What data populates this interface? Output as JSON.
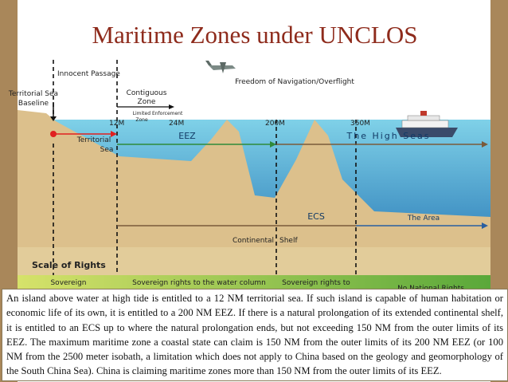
{
  "title": "Maritime Zones under UNCLOS",
  "diagram": {
    "innocent_passage": "Innocent Passage",
    "baseline": [
      "Territorial Sea",
      "Baseline"
    ],
    "contiguous": [
      "Contiguous",
      "Zone"
    ],
    "limited": [
      "Limited Enforcement",
      "Zone"
    ],
    "distances": [
      "12M",
      "24M",
      "200M",
      "350M"
    ],
    "freedom": "Freedom of Navigation/Overflight",
    "territorial": [
      "Territorial",
      "Sea"
    ],
    "eez": "EEZ",
    "high_seas": "The High Seas",
    "ecs": "ECS",
    "area": "The Area",
    "shelf": [
      "Continental",
      "Shelf"
    ]
  },
  "scale": {
    "title": "Scale of Rights",
    "items": [
      "Sovereign",
      "Sovereign rights to the water column",
      "Sovereign rights to",
      "No National Rights"
    ]
  },
  "note": "An island above water at high tide is entitled to a 12 NM territorial sea.  If such island is capable of human habitation or economic life of its own,  it is entitled to a 200 NM EEZ.  If there is a natural prolongation of its extended continental shelf, it is entitled to an ECS up to where the natural prolongation ends, but not exceeding 150 NM from the outer limits of its EEZ.  The maximum maritime zone a coastal state can claim is 150 NM from the outer limits of its 200 NM EEZ (or 100 NM from the 2500 meter isobath, a limitation which does not apply to China based on the geology and geomorphology of the South China Sea).  China is claiming maritime zones more than 150 NM from the outer limits of its EEZ."
}
